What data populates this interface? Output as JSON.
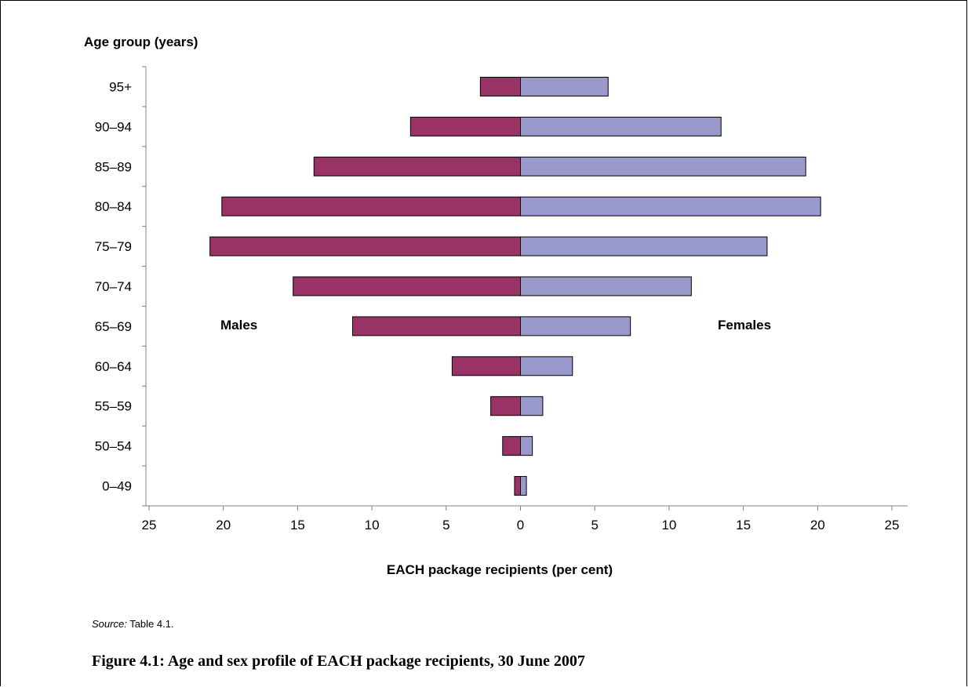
{
  "chart_data": {
    "type": "bar",
    "orientation": "horizontal",
    "ylabel": "Age group (years)",
    "xlabel": "EACH package recipients (per cent)",
    "categories": [
      "95+",
      "90–94",
      "85–89",
      "80–84",
      "75–79",
      "70–74",
      "65–69",
      "60–64",
      "55–59",
      "50–54",
      "0–49"
    ],
    "series": [
      {
        "name": "Males",
        "values": [
          2.7,
          7.4,
          13.9,
          20.1,
          20.9,
          15.3,
          11.3,
          4.6,
          2.0,
          1.2,
          0.4
        ],
        "color": "#993366"
      },
      {
        "name": "Females",
        "values": [
          5.9,
          13.5,
          19.2,
          20.2,
          16.6,
          11.5,
          7.4,
          3.5,
          1.5,
          0.8,
          0.4
        ],
        "color": "#9999CC"
      }
    ],
    "xlim": [
      -25,
      25
    ],
    "xticks": [
      -25,
      -20,
      -15,
      -10,
      -5,
      0,
      5,
      10,
      15,
      20,
      25
    ],
    "xtick_labels": [
      "25",
      "20",
      "15",
      "10",
      "5",
      "0",
      "5",
      "10",
      "15",
      "20",
      "25"
    ],
    "grid": false,
    "legend": "none"
  },
  "source": {
    "label": "Source:",
    "text": " Table 4.1."
  },
  "caption": "Figure 4.1: Age and sex profile of EACH package recipients, 30 June 2007"
}
